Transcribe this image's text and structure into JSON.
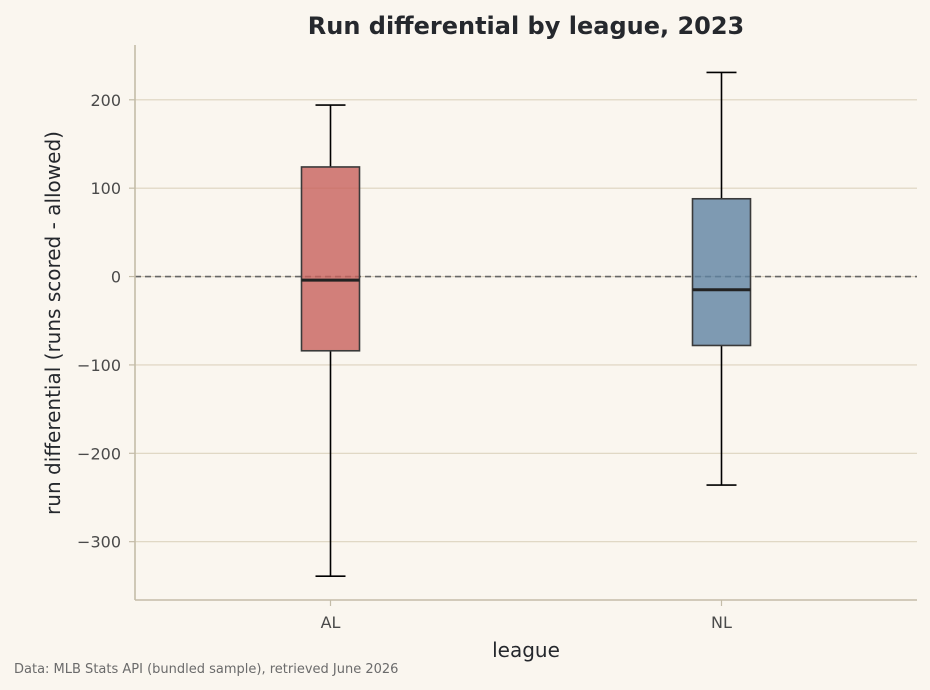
{
  "chart_data": {
    "type": "box",
    "title": "Run differential by league, 2023",
    "xlabel": "league",
    "ylabel": "run differential (runs scored - allowed)",
    "ylim": [
      -366,
      262
    ],
    "yticks": [
      200,
      100,
      0,
      -100,
      -200,
      -300
    ],
    "ytick_labels": [
      "200",
      "100",
      "0",
      "−100",
      "−200",
      "−300"
    ],
    "grid": "horizontal",
    "reference_line": {
      "y": 0,
      "style": "dashed"
    },
    "categories": [
      "AL",
      "NL"
    ],
    "series": [
      {
        "category": "AL",
        "whisker_low": -339,
        "q1": -84,
        "median": -4,
        "q3": 124,
        "whisker_high": 194,
        "color": "#c8625d"
      },
      {
        "category": "NL",
        "whisker_low": -236,
        "q1": -78,
        "median": -15,
        "q3": 88,
        "whisker_high": 231,
        "color": "#5f83a3"
      }
    ]
  },
  "source_note": "Data: MLB Stats API (bundled sample), retrieved June 2026",
  "colors": {
    "background": "#faf6ef",
    "grid": "#ddd3bf",
    "axis": "#c4bca8",
    "reference_line": "#666666",
    "box_edge": "#3a3a3a",
    "median": "#222222",
    "whisker": "#000000"
  }
}
